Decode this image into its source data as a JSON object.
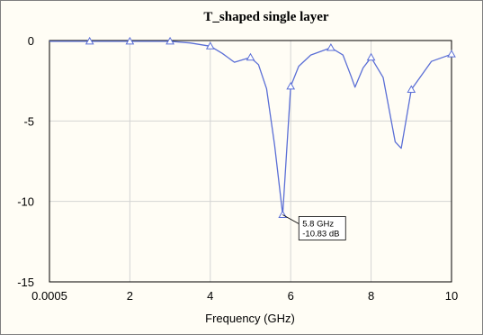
{
  "chart_data": {
    "type": "line",
    "title": "T_shaped single layer",
    "xlabel": "Frequency (GHz)",
    "ylabel": "",
    "xlim": [
      0.0005,
      10
    ],
    "ylim": [
      -15,
      0
    ],
    "x_ticks": [
      0.0005,
      2,
      4,
      6,
      8,
      10
    ],
    "x_tick_labels": [
      "0.0005",
      "2",
      "4",
      "6",
      "8",
      "10"
    ],
    "y_ticks": [
      0,
      -5,
      -10,
      -15
    ],
    "y_tick_labels": [
      "0",
      "-5",
      "-10",
      "-15"
    ],
    "grid": true,
    "line_color": "#5b6fd6",
    "series": [
      {
        "name": "",
        "x": [
          0.0005,
          1,
          2,
          3,
          3.5,
          4,
          4.3,
          4.6,
          5,
          5.2,
          5.4,
          5.6,
          5.8,
          6.0,
          6.2,
          6.5,
          7,
          7.3,
          7.5,
          7.6,
          7.8,
          8,
          8.3,
          8.6,
          8.75,
          9,
          9.5,
          10
        ],
        "y": [
          -0.05,
          -0.05,
          -0.05,
          -0.05,
          -0.15,
          -0.35,
          -0.8,
          -1.35,
          -1.05,
          -1.5,
          -3.0,
          -6.5,
          -10.83,
          -2.85,
          -1.6,
          -0.9,
          -0.45,
          -0.9,
          -2.2,
          -2.9,
          -1.7,
          -1.05,
          -2.3,
          -6.3,
          -6.7,
          -3.05,
          -1.3,
          -0.85
        ]
      }
    ],
    "markers": [
      {
        "x": 1,
        "y": -0.05
      },
      {
        "x": 2,
        "y": -0.05
      },
      {
        "x": 3,
        "y": -0.05
      },
      {
        "x": 4,
        "y": -0.35
      },
      {
        "x": 5,
        "y": -1.05
      },
      {
        "x": 5.8,
        "y": -10.83
      },
      {
        "x": 6.0,
        "y": -2.85
      },
      {
        "x": 7,
        "y": -0.45
      },
      {
        "x": 8,
        "y": -1.05
      },
      {
        "x": 9,
        "y": -3.05
      },
      {
        "x": 10,
        "y": -0.85
      }
    ],
    "annotation": {
      "x": 5.8,
      "y": -10.83,
      "line1": "5.8 GHz",
      "line2": "-10.83 dB"
    }
  }
}
